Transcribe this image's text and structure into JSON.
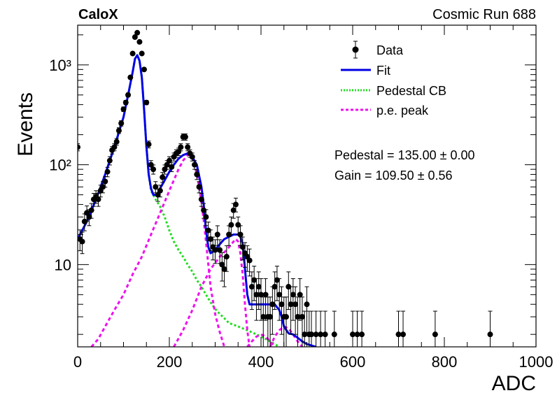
{
  "header": {
    "experiment": "CaloX",
    "run": "Cosmic Run 688"
  },
  "info": {
    "pedestal": "Pedestal = 135.00 ± 0.00",
    "gain": "Gain = 109.50 ± 0.56"
  },
  "colors": {
    "data": "#000000",
    "fit": "#0000e6",
    "pedestal_cb": "#22dd22",
    "pe_peak": "#ee11ee"
  },
  "chart_data": {
    "type": "scatter",
    "xlabel": "ADC",
    "ylabel": "Events",
    "xlim": [
      0,
      1000
    ],
    "ylim": [
      1.5,
      2500
    ],
    "yscale": "log",
    "x_ticks": [
      0,
      200,
      400,
      600,
      800,
      1000
    ],
    "y_ticks": [
      {
        "value": 10,
        "label": "10"
      },
      {
        "value": 100,
        "label": "10²"
      },
      {
        "value": 1000,
        "label": "10³"
      }
    ],
    "grid": false,
    "legend_position": "top-right",
    "legend": [
      {
        "key": "data",
        "label": "Data",
        "style": "marker"
      },
      {
        "key": "fit",
        "label": "Fit",
        "style": "solid"
      },
      {
        "key": "pedestal_cb",
        "label": "Pedestal CB",
        "style": "dotted"
      },
      {
        "key": "pe_peak",
        "label": "p.e. peak",
        "style": "dashed"
      }
    ],
    "series": [
      {
        "name": "Data",
        "kind": "points",
        "points": [
          [
            0,
            150
          ],
          [
            5,
            18
          ],
          [
            10,
            17
          ],
          [
            15,
            27
          ],
          [
            20,
            33
          ],
          [
            25,
            30
          ],
          [
            30,
            35
          ],
          [
            35,
            45
          ],
          [
            40,
            48
          ],
          [
            45,
            45
          ],
          [
            50,
            55
          ],
          [
            55,
            60
          ],
          [
            60,
            68
          ],
          [
            65,
            85
          ],
          [
            70,
            110
          ],
          [
            75,
            140
          ],
          [
            80,
            150
          ],
          [
            85,
            170
          ],
          [
            90,
            220
          ],
          [
            95,
            260
          ],
          [
            100,
            360
          ],
          [
            105,
            420
          ],
          [
            110,
            500
          ],
          [
            115,
            750
          ],
          [
            120,
            1300
          ],
          [
            125,
            1900
          ],
          [
            130,
            2100
          ],
          [
            135,
            1700
          ],
          [
            140,
            1300
          ],
          [
            145,
            900
          ],
          [
            150,
            420
          ],
          [
            155,
            160
          ],
          [
            160,
            100
          ],
          [
            165,
            90
          ],
          [
            170,
            60
          ],
          [
            175,
            50
          ],
          [
            180,
            55
          ],
          [
            185,
            75
          ],
          [
            190,
            90
          ],
          [
            195,
            100
          ],
          [
            200,
            110
          ],
          [
            205,
            95
          ],
          [
            210,
            120
          ],
          [
            215,
            130
          ],
          [
            220,
            135
          ],
          [
            225,
            150
          ],
          [
            230,
            190
          ],
          [
            235,
            190
          ],
          [
            240,
            150
          ],
          [
            245,
            130
          ],
          [
            250,
            120
          ],
          [
            255,
            100
          ],
          [
            260,
            80
          ],
          [
            265,
            60
          ],
          [
            270,
            45
          ],
          [
            275,
            35
          ],
          [
            280,
            30
          ],
          [
            285,
            22
          ],
          [
            290,
            18
          ],
          [
            295,
            15
          ],
          [
            300,
            14
          ],
          [
            305,
            20
          ],
          [
            310,
            14
          ],
          [
            315,
            10
          ],
          [
            320,
            9
          ],
          [
            325,
            12
          ],
          [
            330,
            20
          ],
          [
            335,
            25
          ],
          [
            340,
            35
          ],
          [
            345,
            40
          ],
          [
            350,
            25
          ],
          [
            355,
            20
          ],
          [
            360,
            15
          ],
          [
            365,
            13
          ],
          [
            370,
            12
          ],
          [
            375,
            11
          ],
          [
            380,
            6
          ],
          [
            385,
            7
          ],
          [
            390,
            5
          ],
          [
            395,
            6
          ],
          [
            400,
            5
          ],
          [
            405,
            3
          ],
          [
            410,
            5
          ],
          [
            415,
            3
          ],
          [
            420,
            3
          ],
          [
            425,
            4
          ],
          [
            430,
            6
          ],
          [
            435,
            7
          ],
          [
            440,
            5
          ],
          [
            445,
            4
          ],
          [
            450,
            3
          ],
          [
            455,
            3
          ],
          [
            460,
            6
          ],
          [
            465,
            4
          ],
          [
            470,
            5
          ],
          [
            475,
            4
          ],
          [
            480,
            3
          ],
          [
            485,
            5
          ],
          [
            490,
            3
          ],
          [
            495,
            2
          ],
          [
            500,
            4
          ],
          [
            505,
            2
          ],
          [
            510,
            2
          ],
          [
            520,
            2
          ],
          [
            530,
            2
          ],
          [
            540,
            2
          ],
          [
            560,
            2
          ],
          [
            600,
            2
          ],
          [
            610,
            2
          ],
          [
            620,
            2
          ],
          [
            700,
            2
          ],
          [
            710,
            2
          ],
          [
            780,
            2
          ],
          [
            900,
            2
          ]
        ]
      },
      {
        "name": "Fit",
        "kind": "line",
        "points": [
          [
            0,
            18
          ],
          [
            20,
            27
          ],
          [
            40,
            45
          ],
          [
            60,
            80
          ],
          [
            80,
            150
          ],
          [
            100,
            300
          ],
          [
            110,
            500
          ],
          [
            120,
            850
          ],
          [
            125,
            1150
          ],
          [
            130,
            1250
          ],
          [
            135,
            1100
          ],
          [
            140,
            750
          ],
          [
            145,
            350
          ],
          [
            150,
            150
          ],
          [
            155,
            80
          ],
          [
            160,
            58
          ],
          [
            165,
            50
          ],
          [
            170,
            50
          ],
          [
            175,
            52
          ],
          [
            180,
            58
          ],
          [
            190,
            70
          ],
          [
            200,
            85
          ],
          [
            210,
            100
          ],
          [
            220,
            115
          ],
          [
            230,
            125
          ],
          [
            240,
            130
          ],
          [
            250,
            120
          ],
          [
            260,
            100
          ],
          [
            270,
            60
          ],
          [
            275,
            40
          ],
          [
            280,
            22
          ],
          [
            285,
            15
          ],
          [
            290,
            13
          ],
          [
            300,
            14
          ],
          [
            310,
            16
          ],
          [
            320,
            18
          ],
          [
            330,
            19
          ],
          [
            340,
            20
          ],
          [
            350,
            20
          ],
          [
            355,
            19
          ],
          [
            360,
            16
          ],
          [
            365,
            9
          ],
          [
            370,
            5
          ],
          [
            375,
            4
          ],
          [
            380,
            4
          ],
          [
            390,
            4
          ],
          [
            400,
            4
          ],
          [
            410,
            4
          ],
          [
            420,
            4
          ],
          [
            430,
            4
          ],
          [
            440,
            3.5
          ],
          [
            445,
            3
          ],
          [
            450,
            2.4
          ],
          [
            460,
            2.05
          ],
          [
            470,
            2.0
          ],
          [
            480,
            1.85
          ],
          [
            490,
            1.7
          ],
          [
            500,
            1.6
          ],
          [
            510,
            1.55
          ],
          [
            520,
            1.5
          ]
        ]
      },
      {
        "name": "Pedestal CB",
        "kind": "line",
        "points": [
          [
            0,
            18
          ],
          [
            20,
            27
          ],
          [
            40,
            45
          ],
          [
            60,
            80
          ],
          [
            80,
            150
          ],
          [
            100,
            300
          ],
          [
            110,
            500
          ],
          [
            120,
            850
          ],
          [
            125,
            1150
          ],
          [
            130,
            1250
          ],
          [
            135,
            1100
          ],
          [
            140,
            750
          ],
          [
            145,
            350
          ],
          [
            150,
            150
          ],
          [
            155,
            80
          ],
          [
            160,
            55
          ],
          [
            170,
            45
          ],
          [
            180,
            38
          ],
          [
            190,
            30
          ],
          [
            200,
            22
          ],
          [
            210,
            17
          ],
          [
            220,
            14
          ],
          [
            230,
            12
          ],
          [
            240,
            10
          ],
          [
            250,
            8.5
          ],
          [
            260,
            7
          ],
          [
            270,
            6
          ],
          [
            280,
            5
          ],
          [
            290,
            4.2
          ],
          [
            300,
            3.6
          ],
          [
            310,
            3.2
          ],
          [
            320,
            2.9
          ],
          [
            330,
            2.6
          ],
          [
            340,
            2.5
          ],
          [
            350,
            2.4
          ],
          [
            360,
            2.3
          ],
          [
            370,
            2.2
          ],
          [
            380,
            2.1
          ],
          [
            390,
            2.0
          ],
          [
            400,
            1.9
          ],
          [
            410,
            1.8
          ],
          [
            420,
            1.7
          ],
          [
            430,
            1.6
          ],
          [
            440,
            1.5
          ]
        ]
      },
      {
        "name": "p.e. peak",
        "kind": "line",
        "segments": [
          [
            [
              30,
              1.5
            ],
            [
              45,
              1.8
            ],
            [
              60,
              2.4
            ],
            [
              80,
              3.5
            ],
            [
              100,
              5
            ],
            [
              120,
              8
            ],
            [
              140,
              12
            ],
            [
              160,
              20
            ],
            [
              180,
              33
            ],
            [
              200,
              55
            ],
            [
              220,
              90
            ],
            [
              230,
              110
            ],
            [
              240,
              125
            ],
            [
              245,
              125
            ],
            [
              250,
              118
            ],
            [
              255,
              100
            ],
            [
              260,
              80
            ],
            [
              265,
              60
            ],
            [
              270,
              42
            ],
            [
              275,
              28
            ],
            [
              280,
              17
            ],
            [
              285,
              10
            ],
            [
              290,
              6
            ],
            [
              300,
              3.2
            ],
            [
              310,
              2.1
            ],
            [
              320,
              1.5
            ]
          ],
          [
            [
              210,
              1.5
            ],
            [
              230,
              2.2
            ],
            [
              250,
              3.5
            ],
            [
              270,
              6
            ],
            [
              290,
              9
            ],
            [
              310,
              12
            ],
            [
              325,
              14
            ],
            [
              340,
              17
            ],
            [
              345,
              18
            ],
            [
              350,
              17
            ],
            [
              355,
              13
            ],
            [
              360,
              8
            ],
            [
              365,
              4
            ],
            [
              370,
              2.2
            ],
            [
              375,
              1.5
            ]
          ],
          [
            [
              370,
              1.5
            ],
            [
              380,
              1.7
            ],
            [
              390,
              1.9
            ],
            [
              400,
              2.0
            ],
            [
              410,
              1.9
            ],
            [
              420,
              1.7
            ],
            [
              430,
              1.5
            ]
          ],
          [
            [
              420,
              1.5
            ],
            [
              430,
              1.9
            ],
            [
              440,
              2.2
            ],
            [
              450,
              2.4
            ],
            [
              460,
              2.3
            ],
            [
              470,
              2.0
            ],
            [
              480,
              1.7
            ],
            [
              490,
              1.5
            ]
          ]
        ]
      }
    ]
  }
}
